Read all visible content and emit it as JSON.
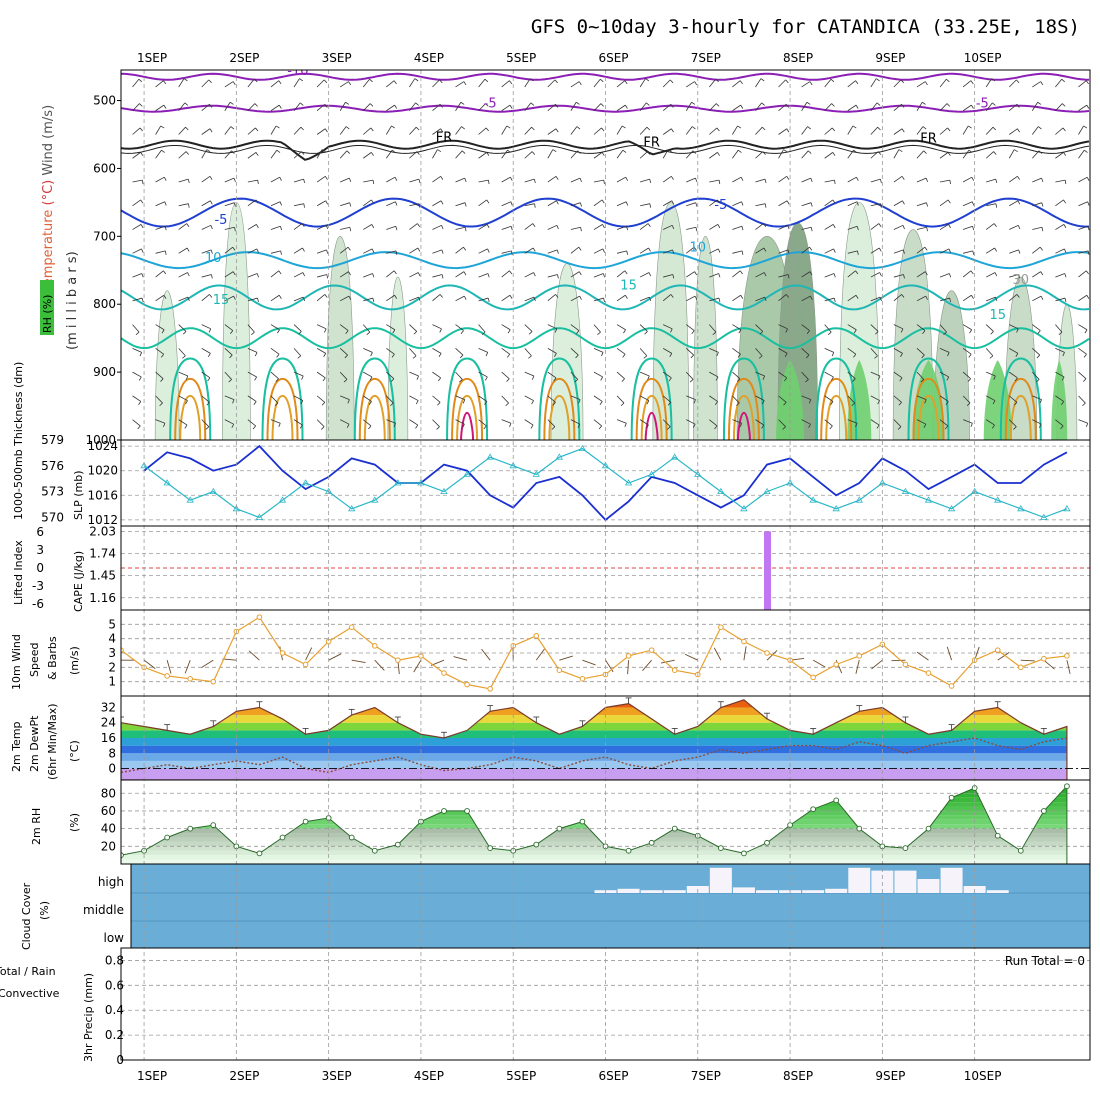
{
  "title": "GFS 0~10day 3-hourly for CATANDICA (33.25E, 18S)",
  "days": [
    "1SEP",
    "2SEP",
    "3SEP",
    "4SEP",
    "5SEP",
    "6SEP",
    "7SEP",
    "8SEP",
    "9SEP",
    "10SEP"
  ],
  "panels": {
    "upper": {
      "ylabel_parts": [
        {
          "text": "Wind (m/s)",
          "color": "#555555"
        },
        {
          "text": "(°C)",
          "color": "#d63a3a"
        },
        {
          "text": "Temperature",
          "color": "#e0623a"
        }
      ],
      "ylabel_mb": "(m i l l i b a r s)",
      "rh_label": "RH (%)",
      "pressure_ticks": [
        500,
        600,
        700,
        800,
        900,
        1000
      ],
      "contour_labels": [
        "-10",
        "-5",
        "-5",
        "FR",
        "FR",
        "FR",
        "-5",
        "-5",
        "10",
        "10",
        "15",
        "15",
        "15",
        "30"
      ]
    },
    "thickness": {
      "ylabel_left": "1000-500mb Thickness (dm)",
      "ylabel_right": "SLP (mb)",
      "left_ticks": [
        570,
        573,
        576,
        579
      ],
      "right_ticks": [
        1012,
        1016,
        1020,
        1024
      ]
    },
    "cape": {
      "ylabel_left": "Lifted Index",
      "ylabel_right": "CAPE (J/kg)",
      "left_ticks": [
        "6",
        "3",
        "0",
        "-3",
        "-6"
      ],
      "right_ticks": [
        "1.16",
        "1.45",
        "1.74",
        "2.03"
      ]
    },
    "wind10m": {
      "ylabel": [
        "10m Wind",
        "Speed",
        "& Barbs"
      ],
      "unit": "(m/s)",
      "ticks": [
        1,
        2,
        3,
        4,
        5
      ]
    },
    "temp2m": {
      "ylabel": [
        "2m Temp",
        "2m DewPt",
        "(6hr Min/Max)"
      ],
      "unit": "(°C)",
      "ticks": [
        0,
        8,
        16,
        24,
        32
      ]
    },
    "rh2m": {
      "ylabel": "2m RH",
      "unit": "(%)",
      "ticks": [
        20,
        40,
        60,
        80
      ]
    },
    "cloud": {
      "ylabel": "Cloud Cover",
      "unit": "(%)",
      "levels": [
        "high",
        "middle",
        "low"
      ]
    },
    "precip": {
      "ylabel_a": "Total / Rain",
      "ylabel_b": "Convective",
      "ylabel_c": "3hr Precip (mm)",
      "ticks": [
        "0",
        "0.2",
        "0.4",
        "0.6",
        "0.8"
      ],
      "run_total": "Run Total = 0"
    }
  },
  "colors": {
    "purple": "#8b1fb5",
    "blue": "#1f3fd0",
    "cyan": "#1ea5d8",
    "teal": "#18bfa0",
    "orange": "#e08a1a",
    "magenta": "#d0147a",
    "rh_green": "#6fcf6f",
    "cloud_blue": "#6aaed8",
    "slp": "#1a2fd0",
    "thickness": "#2ab6c8",
    "wind_speed": "#e8a030",
    "cape_bar": "#c077f0"
  },
  "chart_data": [
    {
      "type": "line",
      "panel": "1000-500mb Thickness and SLP",
      "x_unit": "hours since 1SEP 00Z",
      "x": [
        0,
        6,
        12,
        18,
        24,
        30,
        36,
        42,
        48,
        54,
        60,
        66,
        72,
        78,
        84,
        90,
        96,
        102,
        108,
        114,
        120,
        126,
        132,
        138,
        144,
        150,
        156,
        162,
        168,
        174,
        180,
        186,
        192,
        198,
        204,
        210,
        216,
        222,
        228,
        234,
        240
      ],
      "series": [
        {
          "name": "SLP (mb)",
          "axis": "right",
          "values": [
            1020,
            1023,
            1022,
            1020,
            1021,
            1024,
            1020,
            1017,
            1019,
            1022,
            1021,
            1018,
            1018,
            1021,
            1020,
            1016,
            1014,
            1018,
            1019,
            1016,
            1012,
            1015,
            1019,
            1018,
            1016,
            1014,
            1016,
            1021,
            1022,
            1019,
            1016,
            1018,
            1022,
            1020,
            1017,
            1019,
            1021,
            1018,
            1018,
            1021,
            1023
          ]
        },
        {
          "name": "1000-500mb Thickness (dm)",
          "axis": "left",
          "values": [
            576,
            574,
            572,
            573,
            571,
            570,
            572,
            574,
            573,
            571,
            572,
            574,
            574,
            573,
            575,
            577,
            576,
            575,
            577,
            578,
            576,
            574,
            575,
            577,
            575,
            573,
            571,
            573,
            574,
            572,
            571,
            572,
            574,
            573,
            572,
            571,
            573,
            572,
            571,
            570,
            571
          ]
        }
      ],
      "ylim_left": [
        569,
        579
      ],
      "ylim_right": [
        1011,
        1025
      ]
    },
    {
      "type": "bar",
      "panel": "Lifted Index and CAPE",
      "x_unit": "hours since 1SEP 00Z",
      "x": [
        162
      ],
      "values": [
        2.03
      ],
      "ylim_right": [
        1.0,
        2.1
      ],
      "lifted_index_zero_line": 0
    },
    {
      "type": "line",
      "panel": "10m Wind Speed",
      "x_unit": "hours since 1SEP 00Z",
      "x": [
        -6,
        0,
        6,
        12,
        18,
        24,
        30,
        36,
        42,
        48,
        54,
        60,
        66,
        72,
        78,
        84,
        90,
        96,
        102,
        108,
        114,
        120,
        126,
        132,
        138,
        144,
        150,
        156,
        162,
        168,
        174,
        180,
        186,
        192,
        198,
        204,
        210,
        216,
        222,
        228,
        234,
        240
      ],
      "values": [
        3.2,
        2.0,
        1.4,
        1.2,
        1.0,
        4.5,
        5.5,
        3.0,
        2.2,
        3.8,
        4.8,
        3.5,
        2.5,
        2.8,
        1.6,
        0.8,
        0.5,
        3.5,
        4.2,
        1.8,
        1.2,
        1.5,
        2.8,
        3.2,
        1.8,
        1.5,
        4.8,
        3.8,
        3.0,
        2.5,
        1.3,
        2.2,
        2.8,
        3.6,
        2.2,
        1.6,
        0.7,
        2.5,
        3.2,
        2.0,
        2.6,
        2.8
      ],
      "ylim": [
        0,
        6
      ]
    },
    {
      "type": "area",
      "panel": "2m Temp and DewPt",
      "x_unit": "hours since 1SEP 00Z",
      "x": [
        -6,
        0,
        6,
        12,
        18,
        24,
        30,
        36,
        42,
        48,
        54,
        60,
        66,
        72,
        78,
        84,
        90,
        96,
        102,
        108,
        114,
        120,
        126,
        132,
        138,
        144,
        150,
        156,
        162,
        168,
        174,
        180,
        186,
        192,
        198,
        204,
        210,
        216,
        222,
        228,
        234,
        240
      ],
      "series": [
        {
          "name": "2m Temp",
          "values": [
            24,
            22,
            20,
            18,
            22,
            30,
            32,
            26,
            18,
            20,
            28,
            32,
            24,
            18,
            16,
            20,
            30,
            32,
            24,
            18,
            22,
            32,
            34,
            26,
            18,
            22,
            32,
            36,
            26,
            20,
            18,
            24,
            30,
            32,
            24,
            18,
            20,
            30,
            32,
            24,
            18,
            22
          ]
        },
        {
          "name": "2m DewPt",
          "values": [
            -2,
            0,
            2,
            0,
            2,
            4,
            2,
            6,
            0,
            -2,
            2,
            4,
            6,
            2,
            -1,
            0,
            2,
            6,
            4,
            0,
            4,
            6,
            2,
            0,
            4,
            6,
            10,
            8,
            10,
            12,
            12,
            10,
            14,
            12,
            8,
            12,
            14,
            16,
            12,
            10,
            14,
            16
          ]
        }
      ],
      "ylim": [
        -6,
        38
      ]
    },
    {
      "type": "area",
      "panel": "2m RH",
      "x_unit": "hours since 1SEP 00Z",
      "x": [
        -6,
        0,
        6,
        12,
        18,
        24,
        30,
        36,
        42,
        48,
        54,
        60,
        66,
        72,
        78,
        84,
        90,
        96,
        102,
        108,
        114,
        120,
        126,
        132,
        138,
        144,
        150,
        156,
        162,
        168,
        174,
        180,
        186,
        192,
        198,
        204,
        210,
        216,
        222,
        228,
        234,
        240
      ],
      "values": [
        10,
        15,
        30,
        40,
        44,
        20,
        12,
        30,
        48,
        52,
        30,
        15,
        22,
        48,
        60,
        60,
        18,
        15,
        22,
        40,
        48,
        20,
        15,
        24,
        40,
        32,
        18,
        12,
        24,
        44,
        62,
        72,
        40,
        20,
        18,
        40,
        75,
        86,
        32,
        15,
        60,
        88
      ],
      "ylim": [
        0,
        95
      ]
    },
    {
      "type": "bar",
      "panel": "Cloud Cover (high)",
      "x_unit": "hours since 1SEP 00Z",
      "x": [
        120,
        126,
        132,
        138,
        144,
        150,
        156,
        162,
        168,
        174,
        180,
        186,
        192,
        198,
        204,
        210,
        216,
        222
      ],
      "values": [
        10,
        15,
        10,
        10,
        25,
        90,
        20,
        10,
        10,
        10,
        15,
        90,
        80,
        80,
        50,
        90,
        25,
        10
      ],
      "ylim": [
        0,
        100
      ]
    },
    {
      "type": "bar",
      "panel": "3hr Precip",
      "x_unit": "hours since 1SEP 00Z",
      "x": [],
      "values": [],
      "ylim": [
        0,
        0.9
      ]
    }
  ]
}
